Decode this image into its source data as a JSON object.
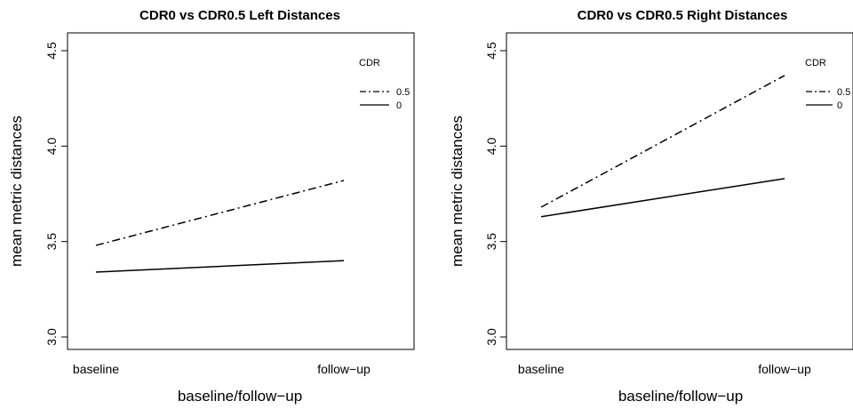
{
  "chart_data": [
    {
      "type": "line",
      "title": "CDR0 vs CDR0.5 Left Distances",
      "xlabel": "baseline/follow−up",
      "ylabel": "mean metric distances",
      "categories": [
        "baseline",
        "follow−up"
      ],
      "ylim": [
        3.0,
        4.5
      ],
      "yticks": [
        "3.0",
        "3.5",
        "4.0",
        "4.5"
      ],
      "legend": {
        "title": "CDR",
        "placement": "top-right"
      },
      "series": [
        {
          "name": "0.5",
          "values": [
            3.48,
            3.82
          ],
          "style": "dashdot"
        },
        {
          "name": "0",
          "values": [
            3.34,
            3.4
          ],
          "style": "solid"
        }
      ]
    },
    {
      "type": "line",
      "title": "CDR0 vs CDR0.5 Right Distances",
      "xlabel": "baseline/follow−up",
      "ylabel": "mean metric distances",
      "categories": [
        "baseline",
        "follow−up"
      ],
      "ylim": [
        3.0,
        4.5
      ],
      "yticks": [
        "3.0",
        "3.5",
        "4.0",
        "4.5"
      ],
      "legend": {
        "title": "CDR",
        "placement": "top-right"
      },
      "series": [
        {
          "name": "0.5",
          "values": [
            3.68,
            4.37
          ],
          "style": "dashdot"
        },
        {
          "name": "0",
          "values": [
            3.63,
            3.83
          ],
          "style": "solid"
        }
      ]
    }
  ]
}
